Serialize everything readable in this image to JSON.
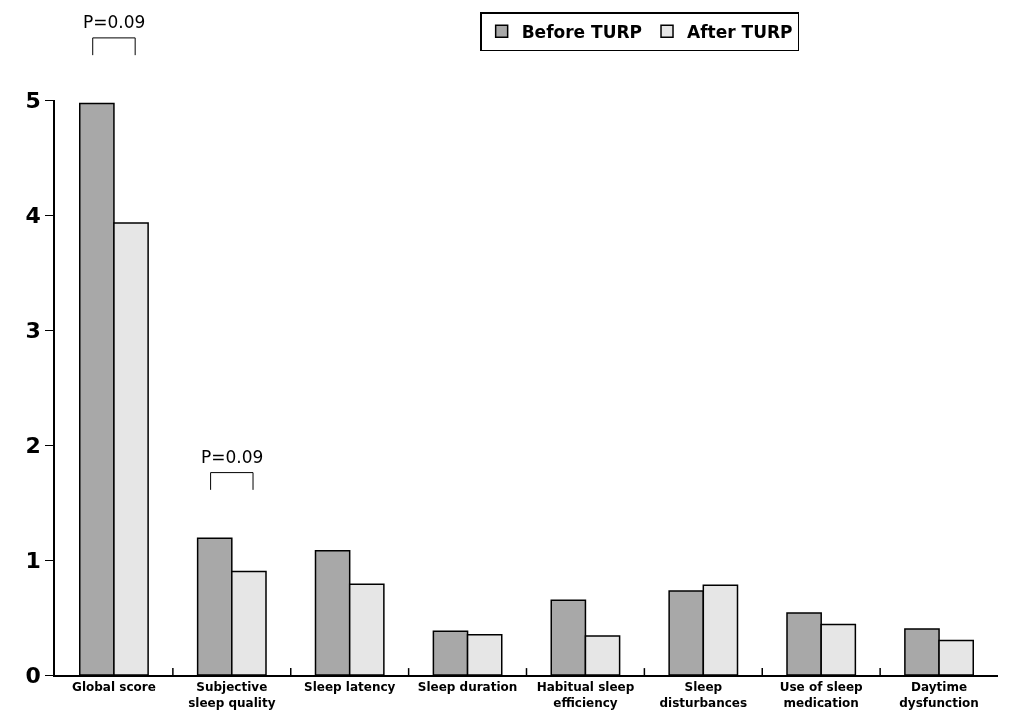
{
  "chart_data": {
    "type": "bar",
    "categories": [
      "Global score",
      "Subjective sleep quality",
      "Sleep latency",
      "Sleep duration",
      "Habitual sleep efficiency",
      "Sleep disturbances",
      "Use of sleep medication",
      "Daytime dysfunction"
    ],
    "series": [
      {
        "name": "Before TURP",
        "color": "#a8a8a8",
        "values": [
          4.97,
          1.19,
          1.08,
          0.38,
          0.65,
          0.73,
          0.54,
          0.4
        ]
      },
      {
        "name": "After TURP",
        "color": "#e6e6e6",
        "values": [
          3.93,
          0.9,
          0.79,
          0.35,
          0.34,
          0.78,
          0.44,
          0.3
        ]
      }
    ],
    "ylim": [
      0,
      5
    ],
    "yticks": [
      0,
      1,
      2,
      3,
      4,
      5
    ],
    "grid": false,
    "legend": "top",
    "annotations": [
      "P=0.09",
      "P=0.09"
    ]
  }
}
